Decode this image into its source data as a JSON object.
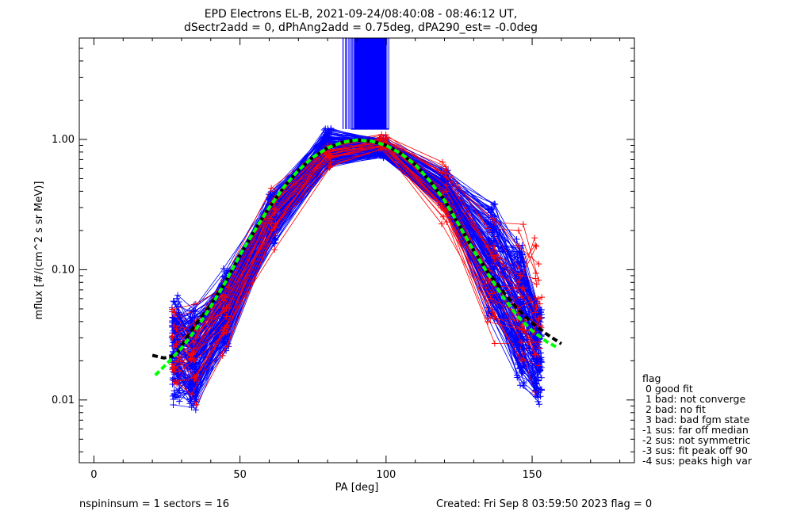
{
  "title_line1": "EPD Electrons EL-B, 2021-09-24/08:40:08 - 08:46:12 UT,",
  "title_line2": "dSectr2add = 0, dPhAng2add = 0.75deg, dPA290_est=  -0.0deg",
  "footer": {
    "left": "nspininsum =  1  sectors = 16",
    "right": "Created: Fri Sep  8 03:59:50 2023   flag = 0"
  },
  "flag_legend": {
    "heading": "flag",
    "items": [
      " 0 good fit",
      " 1 bad: not converge",
      " 2 bad: no fit",
      " 3 bad: bad fgm state",
      "-1 sus: far off median",
      "-2 sus: not symmetric",
      "-3 sus: fit peak off 90",
      "-4 sus: peaks high var"
    ]
  },
  "colors": {
    "blue": "#0000ff",
    "red": "#ff0000",
    "green": "#00ff00",
    "black": "#000000"
  },
  "chart_data": {
    "type": "line",
    "xlabel": "PA [deg]",
    "ylabel": "mflux [#/(cm^2 s sr MeV)]",
    "xlim": [
      -5,
      185
    ],
    "ylim": [
      0.0033,
      6.0
    ],
    "yscale": "log",
    "xticks": [
      0,
      50,
      100,
      150
    ],
    "xtick_labels": [
      "0",
      "50",
      "100",
      "150"
    ],
    "yticks": [
      0.01,
      0.1,
      1.0
    ],
    "ytick_labels": [
      "0.01",
      "0.10",
      "1.00"
    ],
    "grid": false,
    "pa_sectors": [
      28,
      34,
      45,
      61,
      80,
      99,
      120,
      136,
      146,
      152
    ],
    "blue_envelope": {
      "x": [
        28,
        34,
        45,
        61,
        80,
        99,
        120,
        136,
        146,
        152
      ],
      "low": [
        0.009,
        0.007,
        0.022,
        0.15,
        0.58,
        0.72,
        0.27,
        0.035,
        0.012,
        0.009
      ],
      "high": [
        0.072,
        0.065,
        0.11,
        0.42,
        1.3,
        1.05,
        0.62,
        0.38,
        0.2,
        0.07
      ]
    },
    "red_envelope": {
      "x": [
        28,
        34,
        45,
        61,
        80,
        99,
        120,
        136,
        146,
        152
      ],
      "low": [
        0.009,
        0.008,
        0.02,
        0.13,
        0.6,
        0.8,
        0.2,
        0.02,
        0.012,
        0.009
      ],
      "high": [
        0.06,
        0.06,
        0.1,
        0.48,
        0.95,
        1.1,
        0.7,
        0.32,
        0.24,
        0.23
      ]
    },
    "n_curves_blue": 110,
    "n_curves_red": 28,
    "spikes": {
      "x_from": 85,
      "x_to": 101,
      "base": 1.2,
      "color": "blue",
      "count": 30
    },
    "fit_green": {
      "x": [
        21,
        25,
        30,
        35,
        40,
        45,
        50,
        55,
        60,
        65,
        70,
        75,
        80,
        85,
        90,
        95,
        100,
        105,
        110,
        115,
        120,
        125,
        130,
        135,
        140,
        145,
        150,
        155,
        159
      ],
      "y": [
        0.0155,
        0.019,
        0.025,
        0.035,
        0.052,
        0.08,
        0.13,
        0.2,
        0.3,
        0.43,
        0.58,
        0.73,
        0.86,
        0.95,
        0.99,
        0.97,
        0.9,
        0.78,
        0.64,
        0.48,
        0.34,
        0.22,
        0.14,
        0.092,
        0.062,
        0.044,
        0.034,
        0.028,
        0.025
      ]
    },
    "fit_black": {
      "x": [
        20,
        24,
        28,
        30,
        34,
        40,
        45,
        50,
        55,
        60,
        65,
        70,
        75,
        80,
        85,
        90,
        95,
        100,
        105,
        110,
        115,
        120,
        125,
        130,
        135,
        140,
        145,
        150,
        155,
        160
      ],
      "y": [
        0.022,
        0.021,
        0.022,
        0.026,
        0.036,
        0.054,
        0.08,
        0.13,
        0.2,
        0.3,
        0.43,
        0.58,
        0.73,
        0.86,
        0.95,
        0.99,
        0.97,
        0.9,
        0.78,
        0.64,
        0.48,
        0.34,
        0.22,
        0.14,
        0.095,
        0.068,
        0.05,
        0.039,
        0.032,
        0.027
      ]
    }
  }
}
